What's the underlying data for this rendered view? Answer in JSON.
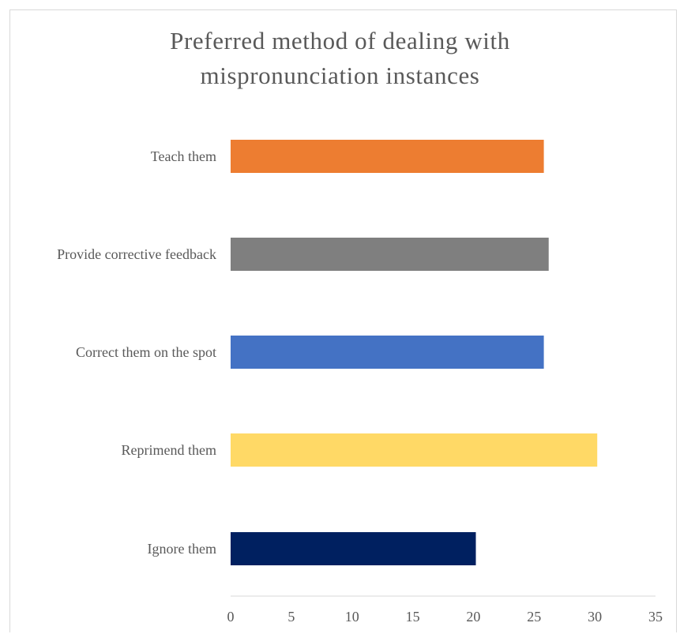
{
  "chart_data": {
    "type": "bar",
    "orientation": "horizontal",
    "title_lines": [
      "Preferred method of dealing with",
      "mispronunciation instances"
    ],
    "categories": [
      "Teach them",
      "Provide corrective feedback",
      "Correct them on the spot",
      "Reprimend them",
      "Ignore them"
    ],
    "values": [
      25.8,
      26.2,
      25.8,
      30.2,
      20.2
    ],
    "colors": [
      "#ed7d31",
      "#7f7f7f",
      "#4472c4",
      "#ffd966",
      "#002060"
    ],
    "xlim": [
      0,
      35
    ],
    "xticks": [
      "0",
      "5",
      "10",
      "15",
      "20",
      "25",
      "30",
      "35"
    ],
    "grid": false,
    "legend": "none"
  }
}
